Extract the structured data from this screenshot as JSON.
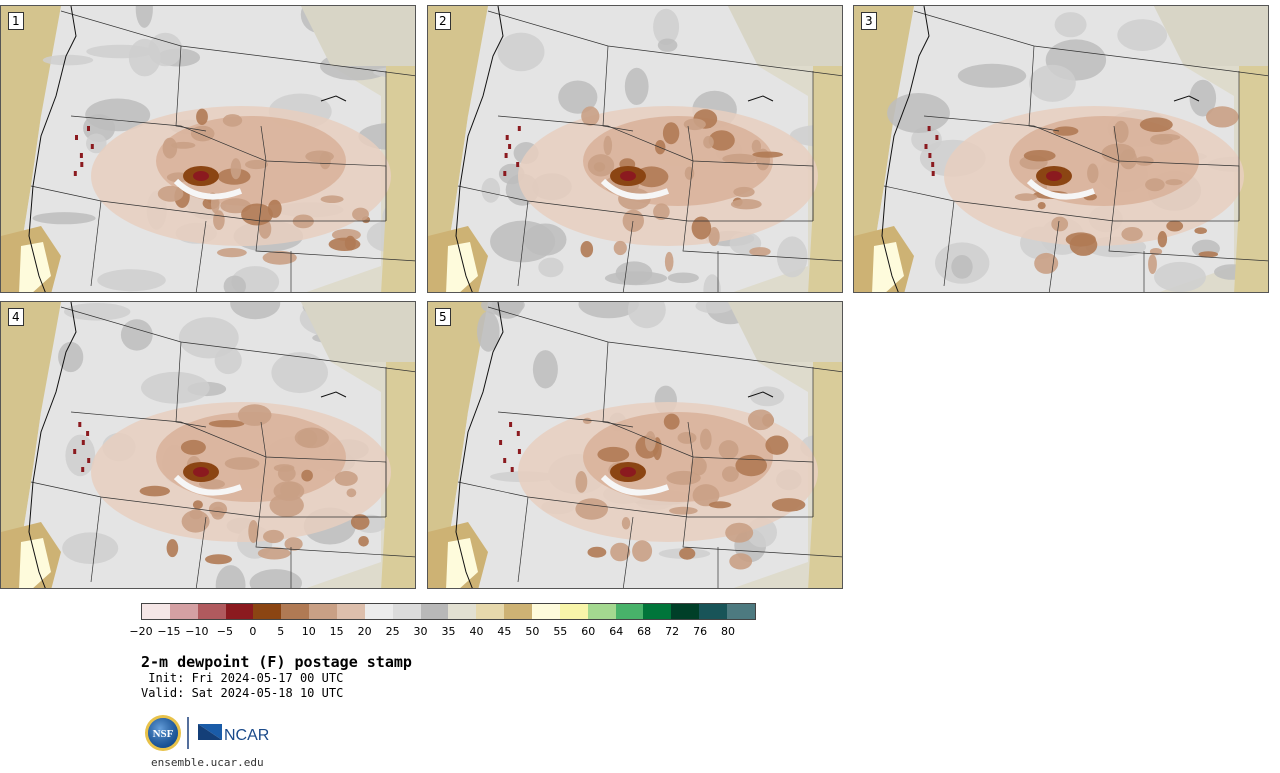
{
  "panels": [
    {
      "label": "1"
    },
    {
      "label": "2"
    },
    {
      "label": "3"
    },
    {
      "label": "4"
    },
    {
      "label": "5"
    }
  ],
  "colorbar": {
    "colors": [
      "#f5e6e6",
      "#d4a0a3",
      "#b05a5e",
      "#8b1a1f",
      "#8b4513",
      "#b07a54",
      "#c9a085",
      "#ddbfac",
      "#ececec",
      "#dcdcdc",
      "#b8b8b8",
      "#e2e0d2",
      "#e6d8ac",
      "#cdb274",
      "#fefbdc",
      "#f8f5aa",
      "#a4d890",
      "#48b26a",
      "#00753a",
      "#003f28",
      "#185458",
      "#4d7a80"
    ],
    "tick_labels": [
      "−20",
      "−15",
      "−10",
      "−5",
      "0",
      "5",
      "10",
      "15",
      "20",
      "25",
      "30",
      "35",
      "40",
      "45",
      "50",
      "55",
      "60",
      "64",
      "68",
      "72",
      "76",
      "80"
    ]
  },
  "title": "2-m dewpoint (F) postage stamp",
  "init": " Init: Fri 2024-05-17 00 UTC",
  "valid": "Valid: Sat 2024-05-18 10 UTC",
  "logos": {
    "nsf": "NSF",
    "ncar": "NCAR"
  },
  "site": "ensemble.ucar.edu"
}
